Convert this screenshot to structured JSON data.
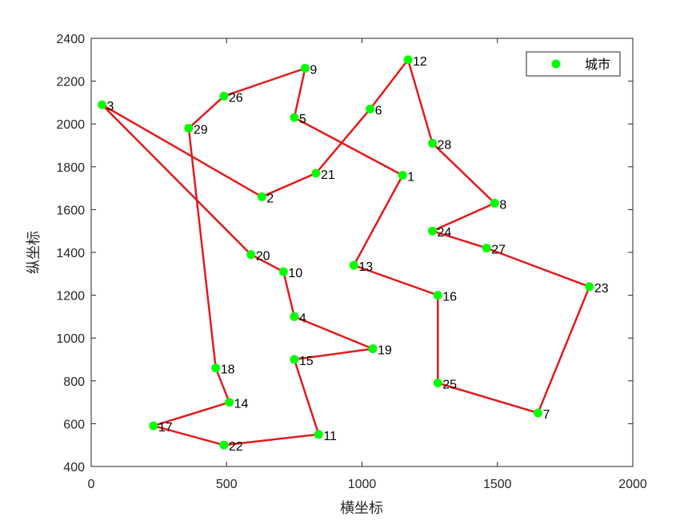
{
  "chart_data": {
    "type": "line",
    "title": "",
    "xlabel": "横坐标",
    "ylabel": "纵坐标",
    "xlim": [
      0,
      2000
    ],
    "ylim": [
      400,
      2400
    ],
    "xticks": [
      0,
      500,
      1000,
      1500,
      2000
    ],
    "yticks": [
      400,
      600,
      800,
      1000,
      1200,
      1400,
      1600,
      1800,
      2000,
      2200,
      2400
    ],
    "grid": false,
    "legend": {
      "position": "top-right",
      "entries": [
        "城市"
      ]
    },
    "colors": {
      "points": "#00ff00",
      "route": "#e41a1c",
      "axes": "#262626"
    },
    "cities": [
      {
        "id": "1",
        "x": 1150,
        "y": 1760
      },
      {
        "id": "2",
        "x": 630,
        "y": 1660
      },
      {
        "id": "3",
        "x": 40,
        "y": 2090
      },
      {
        "id": "4",
        "x": 750,
        "y": 1100
      },
      {
        "id": "5",
        "x": 750,
        "y": 2030
      },
      {
        "id": "6",
        "x": 1030,
        "y": 2070
      },
      {
        "id": "7",
        "x": 1650,
        "y": 650
      },
      {
        "id": "8",
        "x": 1490,
        "y": 1630
      },
      {
        "id": "9",
        "x": 790,
        "y": 2260
      },
      {
        "id": "10",
        "x": 710,
        "y": 1310
      },
      {
        "id": "11",
        "x": 840,
        "y": 550
      },
      {
        "id": "12",
        "x": 1170,
        "y": 2300
      },
      {
        "id": "13",
        "x": 970,
        "y": 1340
      },
      {
        "id": "14",
        "x": 510,
        "y": 700
      },
      {
        "id": "15",
        "x": 750,
        "y": 900
      },
      {
        "id": "16",
        "x": 1280,
        "y": 1200
      },
      {
        "id": "17",
        "x": 230,
        "y": 590
      },
      {
        "id": "18",
        "x": 460,
        "y": 860
      },
      {
        "id": "19",
        "x": 1040,
        "y": 950
      },
      {
        "id": "20",
        "x": 590,
        "y": 1390
      },
      {
        "id": "21",
        "x": 830,
        "y": 1770
      },
      {
        "id": "22",
        "x": 490,
        "y": 500
      },
      {
        "id": "23",
        "x": 1840,
        "y": 1240
      },
      {
        "id": "24",
        "x": 1260,
        "y": 1500
      },
      {
        "id": "25",
        "x": 1280,
        "y": 790
      },
      {
        "id": "26",
        "x": 490,
        "y": 2130
      },
      {
        "id": "27",
        "x": 1460,
        "y": 1420
      },
      {
        "id": "28",
        "x": 1260,
        "y": 1910
      },
      {
        "id": "29",
        "x": 360,
        "y": 1980
      }
    ],
    "route": [
      "1",
      "5",
      "9",
      "26",
      "29",
      "18",
      "14",
      "17",
      "22",
      "11",
      "15",
      "19",
      "4",
      "10",
      "20",
      "3",
      "2",
      "21",
      "6",
      "12",
      "28",
      "8",
      "24",
      "27",
      "23",
      "7",
      "25",
      "16",
      "13",
      "1"
    ]
  }
}
